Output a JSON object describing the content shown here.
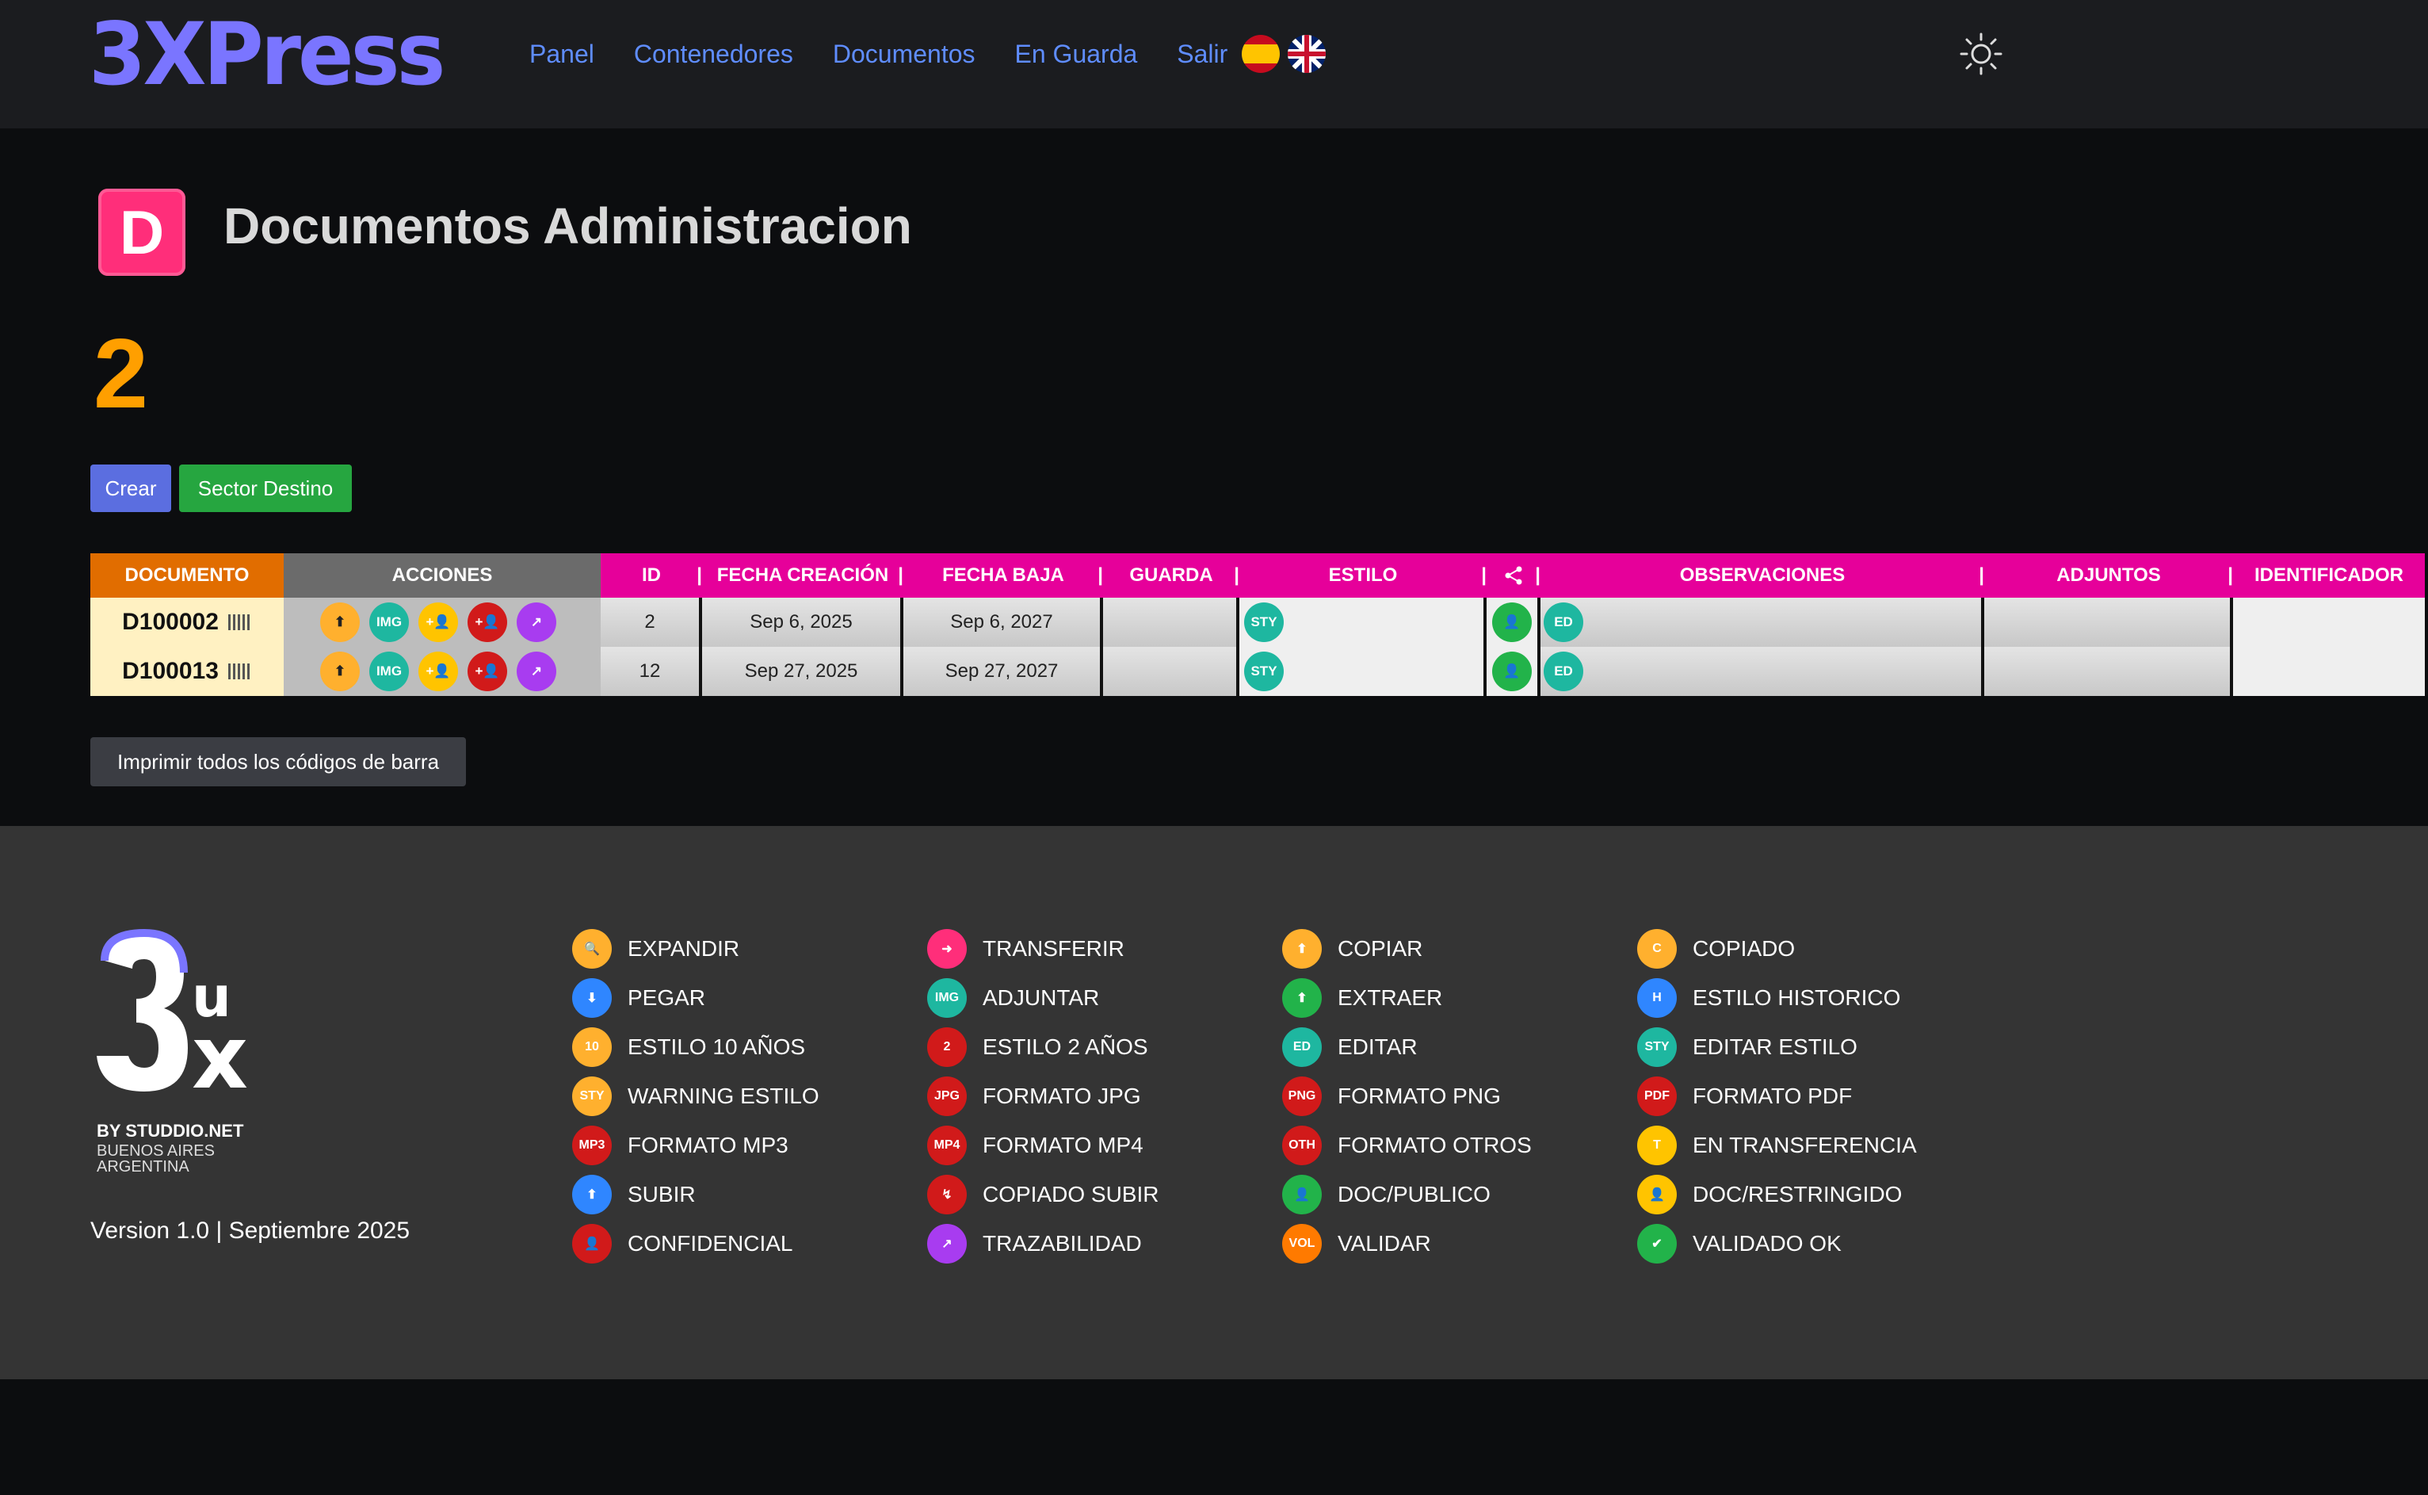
{
  "nav": {
    "logo": "3XPress",
    "links": [
      "Panel",
      "Contenedores",
      "Documentos",
      "En Guarda",
      "Salir"
    ]
  },
  "page": {
    "badge": "D",
    "title": "Documentos Administracion",
    "count": "2"
  },
  "buttons": {
    "crear": "Crear",
    "sector": "Sector Destino",
    "print": "Imprimir todos los códigos de barra"
  },
  "table": {
    "headers": [
      "DOCUMENTO",
      "ACCIONES",
      "ID",
      "FECHA CREACIÓN",
      "FECHA BAJA",
      "GUARDA",
      "ESTILO",
      "OBSERVACIONES",
      "ADJUNTOS",
      "IDENTIFICADOR"
    ],
    "rows": [
      {
        "doc": "D100002",
        "id": "2",
        "created": "Sep 6, 2025",
        "baja": "Sep 6, 2027"
      },
      {
        "doc": "D100013",
        "id": "12",
        "created": "Sep 27, 2025",
        "baja": "Sep 27, 2027"
      }
    ]
  },
  "footer": {
    "by": "BY STUDDIO.NET",
    "city1": "BUENOS AIRES",
    "city2": "ARGENTINA",
    "version": "Version 1.0 | Septiembre 2025",
    "legend": [
      {
        "label": "EXPANDIR",
        "icon": "search-icon",
        "color": "#ffb02e"
      },
      {
        "label": "TRANSFERIR",
        "icon": "arrow-right-icon",
        "color": "#ff2e7a"
      },
      {
        "label": "COPIAR",
        "icon": "arrow-up-icon",
        "color": "#ffb02e"
      },
      {
        "label": "COPIADO",
        "icon": "copied-icon",
        "color": "#ffb02e"
      },
      {
        "label": "PEGAR",
        "icon": "paste-icon",
        "color": "#2f86ff"
      },
      {
        "label": "ADJUNTAR",
        "icon": "img-attach-icon",
        "color": "#1eb7a0"
      },
      {
        "label": "EXTRAER",
        "icon": "extract-icon",
        "color": "#22b34a"
      },
      {
        "label": "ESTILO HISTORICO",
        "icon": "historic-style-icon",
        "color": "#2f86ff"
      },
      {
        "label": "ESTILO 10 AÑOS",
        "icon": "ten-years-icon",
        "color": "#ffb02e"
      },
      {
        "label": "ESTILO 2 AÑOS",
        "icon": "two-years-icon",
        "color": "#d11a1a"
      },
      {
        "label": "EDITAR",
        "icon": "edit-icon",
        "color": "#1eb7a0"
      },
      {
        "label": "EDITAR ESTILO",
        "icon": "edit-style-icon",
        "color": "#1eb7a0"
      },
      {
        "label": "WARNING ESTILO",
        "icon": "warning-style-icon",
        "color": "#ffb02e"
      },
      {
        "label": "FORMATO JPG",
        "icon": "jpg-icon",
        "color": "#d11a1a"
      },
      {
        "label": "FORMATO PNG",
        "icon": "png-icon",
        "color": "#d11a1a"
      },
      {
        "label": "FORMATO PDF",
        "icon": "pdf-icon",
        "color": "#d11a1a"
      },
      {
        "label": "FORMATO MP3",
        "icon": "mp3-icon",
        "color": "#d11a1a"
      },
      {
        "label": "FORMATO MP4",
        "icon": "mp4-icon",
        "color": "#d11a1a"
      },
      {
        "label": "FORMATO OTROS",
        "icon": "oth-icon",
        "color": "#d11a1a"
      },
      {
        "label": "EN TRANSFERENCIA",
        "icon": "in-transfer-icon",
        "color": "#ffc400"
      },
      {
        "label": "SUBIR",
        "icon": "upload-icon",
        "color": "#2f86ff"
      },
      {
        "label": "COPIADO SUBIR",
        "icon": "copied-upload-icon",
        "color": "#d11a1a"
      },
      {
        "label": "DOC/PUBLICO",
        "icon": "public-user-icon",
        "color": "#22b34a"
      },
      {
        "label": "DOC/RESTRINGIDO",
        "icon": "restricted-user-icon",
        "color": "#ffc400"
      },
      {
        "label": "CONFIDENCIAL",
        "icon": "confidential-user-icon",
        "color": "#d11a1a"
      },
      {
        "label": "TRAZABILIDAD",
        "icon": "trace-icon",
        "color": "#a83cf0"
      },
      {
        "label": "VALIDAR",
        "icon": "validate-icon",
        "color": "#ff7a00"
      },
      {
        "label": "VALIDADO OK",
        "icon": "validated-ok-icon",
        "color": "#22b34a"
      }
    ]
  }
}
